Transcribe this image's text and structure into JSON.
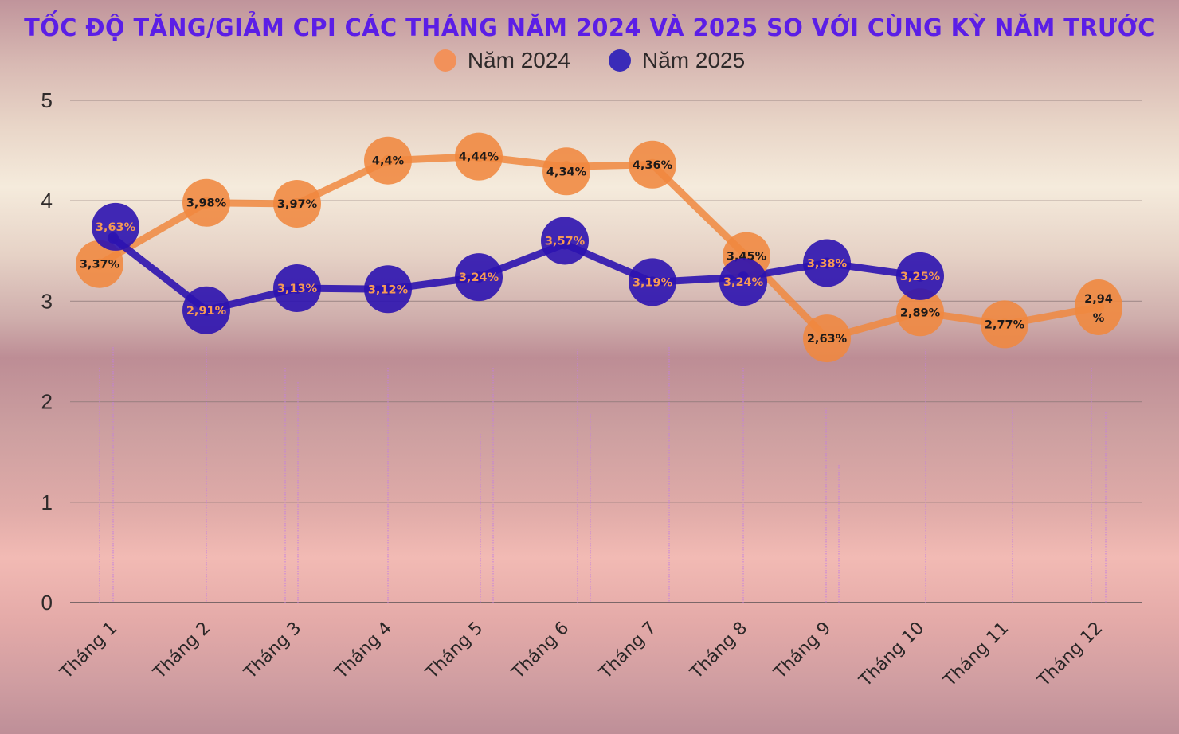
{
  "title": "TỐC ĐỘ TĂNG/GIẢM CPI CÁC THÁNG NĂM 2024 VÀ 2025 SO VỚI CÙNG KỲ NĂM TRƯỚC",
  "legend": [
    {
      "label": "Năm 2024",
      "color": "#f2915a"
    },
    {
      "label": "Năm 2025",
      "color": "#3a2bb8"
    }
  ],
  "colors": {
    "series_2024": "#f0883f",
    "series_2025": "#2c13b0",
    "label_on_2024": "#1d1a1a",
    "label_on_2025": "#f59a55",
    "title": "#5b1ee6",
    "gridline": "#8a7777",
    "dotted_decoration": "#c47fe0"
  },
  "chart_data": {
    "type": "line",
    "title": "TỐC ĐỘ TĂNG/GIẢM CPI CÁC THÁNG NĂM 2024 VÀ 2025 SO VỚI CÙNG KỲ NĂM TRƯỚC",
    "xlabel": "",
    "ylabel": "",
    "ylim": [
      0,
      5
    ],
    "yticks": [
      0,
      1,
      2,
      3,
      4,
      5
    ],
    "grid": true,
    "legend_position": "top",
    "categories": [
      "Tháng 1",
      "Tháng 2",
      "Tháng 3",
      "Tháng 4",
      "Tháng 5",
      "Tháng 6",
      "Tháng 7",
      "Tháng 8",
      "Tháng 9",
      "Tháng 10",
      "Tháng 11",
      "Tháng 12"
    ],
    "series": [
      {
        "name": "Năm 2024",
        "values": [
          3.37,
          3.98,
          3.97,
          4.4,
          4.44,
          4.34,
          4.36,
          3.45,
          2.63,
          2.89,
          2.77,
          2.94
        ],
        "labels": [
          "3,37%",
          "3,98%",
          "3,97%",
          "4,4%",
          "4,44%",
          "4,34%",
          "4,36%",
          "3,45%",
          "2,63%",
          "2,89%",
          "2,77%",
          "2,94\n%"
        ]
      },
      {
        "name": "Năm 2025",
        "values": [
          3.63,
          2.91,
          3.13,
          3.12,
          3.24,
          3.57,
          3.19,
          3.24,
          3.38,
          3.25,
          null,
          null
        ],
        "labels": [
          "3,63%",
          "2,91%",
          "3,13%",
          "3,12%",
          "3,24%",
          "3,57%",
          "3,19%",
          "3,24%",
          "3,38%",
          "3,25%",
          null,
          null
        ]
      }
    ]
  }
}
